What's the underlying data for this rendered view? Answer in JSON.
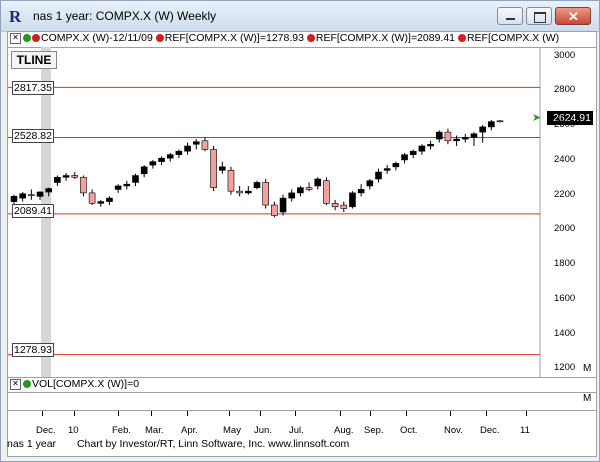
{
  "window": {
    "title": "nas 1 year: COMPX.X (W) Weekly",
    "icon": "linn-r-icon"
  },
  "legend": {
    "series_label": "COMPX.X (W)-12/11/09",
    "ref1_label": "REF[COMPX.X (W)]=1278.93",
    "ref2_label": "REF[COMPX.X (W)]=2089.41",
    "ref3_label": "REF[COMPX.X (W)"
  },
  "tline_button": "TLINE",
  "levels": {
    "l1": "2817.35",
    "l2": "2528.82",
    "l3": "2089.41",
    "l4": "1278.93"
  },
  "current_price": "2624.91",
  "yaxis": {
    "ticks": [
      "3000",
      "2800",
      "2600",
      "2400",
      "2200",
      "2000",
      "1800",
      "1600",
      "1400",
      "1200"
    ],
    "m_label": "M"
  },
  "volume_legend": "VOL[COMPX.X (W)]=0",
  "xaxis": {
    "ticks": [
      "Dec.",
      "10",
      "Feb.",
      "Mar.",
      "Apr.",
      "May",
      "Jun.",
      "Jul.",
      "Aug.",
      "Sep.",
      "Oct.",
      "Nov.",
      "Dec.",
      "11"
    ],
    "m_label": "M"
  },
  "footer": {
    "left": "nas 1 year",
    "right": "Chart by Investor/RT, Linn Software, Inc. www.linnsoft.com"
  },
  "colors": {
    "up": "#000000",
    "down": "#f4a0a0",
    "reference_line": "#e03030",
    "price_arrow": "#2e9a2e"
  },
  "chart_data": {
    "type": "candlestick",
    "title": "COMPX.X (W)-12/11/09",
    "ylim": [
      1150,
      3050
    ],
    "yticks": [
      1200,
      1400,
      1600,
      1800,
      2000,
      2200,
      2400,
      2600,
      2800,
      3000
    ],
    "reference_lines": [
      2817.35,
      2528.82,
      2089.41,
      1278.93
    ],
    "candles": [
      {
        "o": 2160,
        "h": 2200,
        "l": 2120,
        "c": 2190
      },
      {
        "o": 2180,
        "h": 2215,
        "l": 2160,
        "c": 2205
      },
      {
        "o": 2200,
        "h": 2230,
        "l": 2170,
        "c": 2195
      },
      {
        "o": 2190,
        "h": 2220,
        "l": 2170,
        "c": 2215
      },
      {
        "o": 2215,
        "h": 2240,
        "l": 2190,
        "c": 2235
      },
      {
        "o": 2270,
        "h": 2310,
        "l": 2250,
        "c": 2300
      },
      {
        "o": 2300,
        "h": 2325,
        "l": 2280,
        "c": 2310
      },
      {
        "o": 2310,
        "h": 2330,
        "l": 2290,
        "c": 2300
      },
      {
        "o": 2300,
        "h": 2310,
        "l": 2190,
        "c": 2210
      },
      {
        "o": 2210,
        "h": 2230,
        "l": 2140,
        "c": 2150
      },
      {
        "o": 2150,
        "h": 2170,
        "l": 2130,
        "c": 2160
      },
      {
        "o": 2160,
        "h": 2190,
        "l": 2140,
        "c": 2180
      },
      {
        "o": 2230,
        "h": 2260,
        "l": 2210,
        "c": 2250
      },
      {
        "o": 2250,
        "h": 2280,
        "l": 2230,
        "c": 2260
      },
      {
        "o": 2270,
        "h": 2320,
        "l": 2250,
        "c": 2310
      },
      {
        "o": 2320,
        "h": 2370,
        "l": 2300,
        "c": 2360
      },
      {
        "o": 2370,
        "h": 2400,
        "l": 2350,
        "c": 2390
      },
      {
        "o": 2390,
        "h": 2420,
        "l": 2370,
        "c": 2410
      },
      {
        "o": 2410,
        "h": 2440,
        "l": 2390,
        "c": 2430
      },
      {
        "o": 2430,
        "h": 2460,
        "l": 2410,
        "c": 2450
      },
      {
        "o": 2450,
        "h": 2500,
        "l": 2430,
        "c": 2480
      },
      {
        "o": 2490,
        "h": 2520,
        "l": 2460,
        "c": 2505
      },
      {
        "o": 2510,
        "h": 2530,
        "l": 2450,
        "c": 2460
      },
      {
        "o": 2460,
        "h": 2480,
        "l": 2220,
        "c": 2240
      },
      {
        "o": 2340,
        "h": 2390,
        "l": 2320,
        "c": 2360
      },
      {
        "o": 2340,
        "h": 2360,
        "l": 2200,
        "c": 2220
      },
      {
        "o": 2220,
        "h": 2250,
        "l": 2190,
        "c": 2210
      },
      {
        "o": 2210,
        "h": 2250,
        "l": 2200,
        "c": 2220
      },
      {
        "o": 2240,
        "h": 2280,
        "l": 2230,
        "c": 2270
      },
      {
        "o": 2270,
        "h": 2290,
        "l": 2120,
        "c": 2140
      },
      {
        "o": 2140,
        "h": 2160,
        "l": 2070,
        "c": 2080
      },
      {
        "o": 2100,
        "h": 2200,
        "l": 2080,
        "c": 2180
      },
      {
        "o": 2180,
        "h": 2230,
        "l": 2160,
        "c": 2210
      },
      {
        "o": 2210,
        "h": 2250,
        "l": 2190,
        "c": 2240
      },
      {
        "o": 2240,
        "h": 2270,
        "l": 2220,
        "c": 2230
      },
      {
        "o": 2250,
        "h": 2300,
        "l": 2230,
        "c": 2290
      },
      {
        "o": 2280,
        "h": 2300,
        "l": 2140,
        "c": 2150
      },
      {
        "o": 2150,
        "h": 2170,
        "l": 2110,
        "c": 2130
      },
      {
        "o": 2140,
        "h": 2160,
        "l": 2100,
        "c": 2120
      },
      {
        "o": 2130,
        "h": 2220,
        "l": 2120,
        "c": 2210
      },
      {
        "o": 2210,
        "h": 2260,
        "l": 2190,
        "c": 2230
      },
      {
        "o": 2250,
        "h": 2290,
        "l": 2230,
        "c": 2280
      },
      {
        "o": 2290,
        "h": 2350,
        "l": 2270,
        "c": 2330
      },
      {
        "o": 2340,
        "h": 2370,
        "l": 2320,
        "c": 2350
      },
      {
        "o": 2360,
        "h": 2390,
        "l": 2340,
        "c": 2380
      },
      {
        "o": 2400,
        "h": 2440,
        "l": 2380,
        "c": 2430
      },
      {
        "o": 2430,
        "h": 2460,
        "l": 2410,
        "c": 2450
      },
      {
        "o": 2450,
        "h": 2490,
        "l": 2430,
        "c": 2480
      },
      {
        "o": 2480,
        "h": 2510,
        "l": 2460,
        "c": 2490
      },
      {
        "o": 2520,
        "h": 2570,
        "l": 2500,
        "c": 2560
      },
      {
        "o": 2560,
        "h": 2580,
        "l": 2490,
        "c": 2510
      },
      {
        "o": 2510,
        "h": 2540,
        "l": 2480,
        "c": 2520
      },
      {
        "o": 2520,
        "h": 2550,
        "l": 2500,
        "c": 2530
      },
      {
        "o": 2530,
        "h": 2560,
        "l": 2480,
        "c": 2550
      },
      {
        "o": 2560,
        "h": 2600,
        "l": 2500,
        "c": 2590
      },
      {
        "o": 2590,
        "h": 2630,
        "l": 2570,
        "c": 2620
      },
      {
        "o": 2625,
        "h": 2630,
        "l": 2615,
        "c": 2620
      }
    ]
  }
}
